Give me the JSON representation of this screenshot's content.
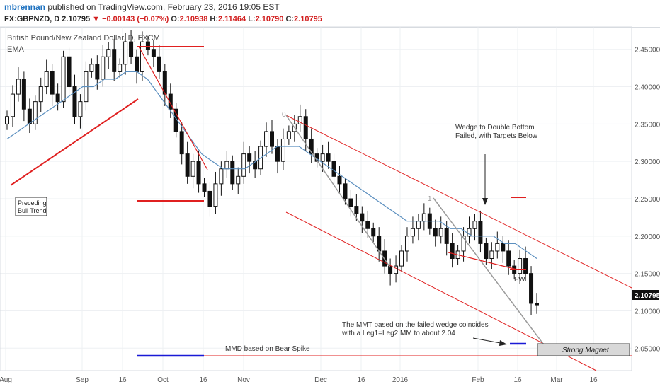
{
  "header": {
    "author": "mbrennan",
    "published": "published on TradingView.com, February 23, 2016 19:05 EST",
    "symbol": "FX:GBPNZD, D",
    "last": "2.10795",
    "change": "−0.00143 (−0.07%)",
    "open_label": "O:",
    "open": "2.10938",
    "high_label": "H:",
    "high": "2.11464",
    "low_label": "L:",
    "low": "2.10790",
    "close_label": "C:",
    "close": "2.10795"
  },
  "legend": {
    "symbol_title": "British Pound/New Zealand Dollar, D, FXCM",
    "indicator": "EMA"
  },
  "chart_data": {
    "type": "candlestick",
    "title": "British Pound/New Zealand Dollar, D, FXCM",
    "ylim": [
      2.02,
      2.48
    ],
    "y_ticks": [
      "2.45000",
      "2.40000",
      "2.35000",
      "2.30000",
      "2.25000",
      "2.20000",
      "2.15000",
      "2.10000",
      "2.05000"
    ],
    "x_ticks": [
      "Aug",
      "Sep",
      "16",
      "Oct",
      "16",
      "Nov",
      "Dec",
      "16",
      "2016",
      "Feb",
      "16",
      "Mar",
      "16"
    ],
    "last_price_label": "2.10795",
    "series": [
      {
        "name": "GBPNZD",
        "close": [
          2.36,
          2.39,
          2.41,
          2.37,
          2.35,
          2.38,
          2.4,
          2.42,
          2.39,
          2.38,
          2.44,
          2.4,
          2.36,
          2.38,
          2.42,
          2.43,
          2.41,
          2.44,
          2.45,
          2.42,
          2.43,
          2.46,
          2.44,
          2.42,
          2.46,
          2.45,
          2.44,
          2.42,
          2.39,
          2.37,
          2.34,
          2.31,
          2.28,
          2.3,
          2.27,
          2.26,
          2.24,
          2.27,
          2.29,
          2.3,
          2.27,
          2.28,
          2.31,
          2.3,
          2.29,
          2.32,
          2.34,
          2.32,
          2.3,
          2.33,
          2.34,
          2.35,
          2.36,
          2.33,
          2.31,
          2.3,
          2.31,
          2.3,
          2.28,
          2.27,
          2.25,
          2.24,
          2.23,
          2.22,
          2.21,
          2.2,
          2.18,
          2.16,
          2.15,
          2.16,
          2.18,
          2.2,
          2.21,
          2.22,
          2.23,
          2.21,
          2.2,
          2.21,
          2.19,
          2.17,
          2.18,
          2.2,
          2.21,
          2.22,
          2.19,
          2.17,
          2.18,
          2.19,
          2.18,
          2.16,
          2.15,
          2.17,
          2.15,
          2.11,
          2.10795
        ]
      },
      {
        "name": "EMA",
        "values": [
          2.33,
          2.34,
          2.35,
          2.36,
          2.37,
          2.38,
          2.39,
          2.4,
          2.4,
          2.41,
          2.41,
          2.42,
          2.42,
          2.41,
          2.39,
          2.37,
          2.35,
          2.33,
          2.31,
          2.3,
          2.29,
          2.29,
          2.29,
          2.3,
          2.31,
          2.32,
          2.32,
          2.32,
          2.31,
          2.3,
          2.29,
          2.28,
          2.27,
          2.26,
          2.25,
          2.24,
          2.23,
          2.22,
          2.22,
          2.22,
          2.22,
          2.21,
          2.21,
          2.2,
          2.2,
          2.2,
          2.19,
          2.19,
          2.18,
          2.17
        ]
      }
    ]
  },
  "annotations": {
    "preceding_line1": "Preceding",
    "preceding_line2": "Bull Trend",
    "wedge_line1": "Wedge to Double Bottom",
    "wedge_line2": "Failed, with Targets Below",
    "mmt_line1": "The MMT based on the failed wedge coincides",
    "mmt_line2": "with a Leg1=Leg2 MM to about 2.04",
    "mmd": "MMD based on Bear Spike",
    "fw": "FW",
    "strong_magnet": "Strong Magnet",
    "label_0": "0",
    "label_1": "1"
  },
  "colors": {
    "bg": "#ffffff",
    "grid": "#eef0f3",
    "candle": "#111111",
    "ema": "#5b8fbf",
    "red": "#e02020",
    "blue": "#1a1ad6",
    "gray": "#9a9a9a"
  }
}
